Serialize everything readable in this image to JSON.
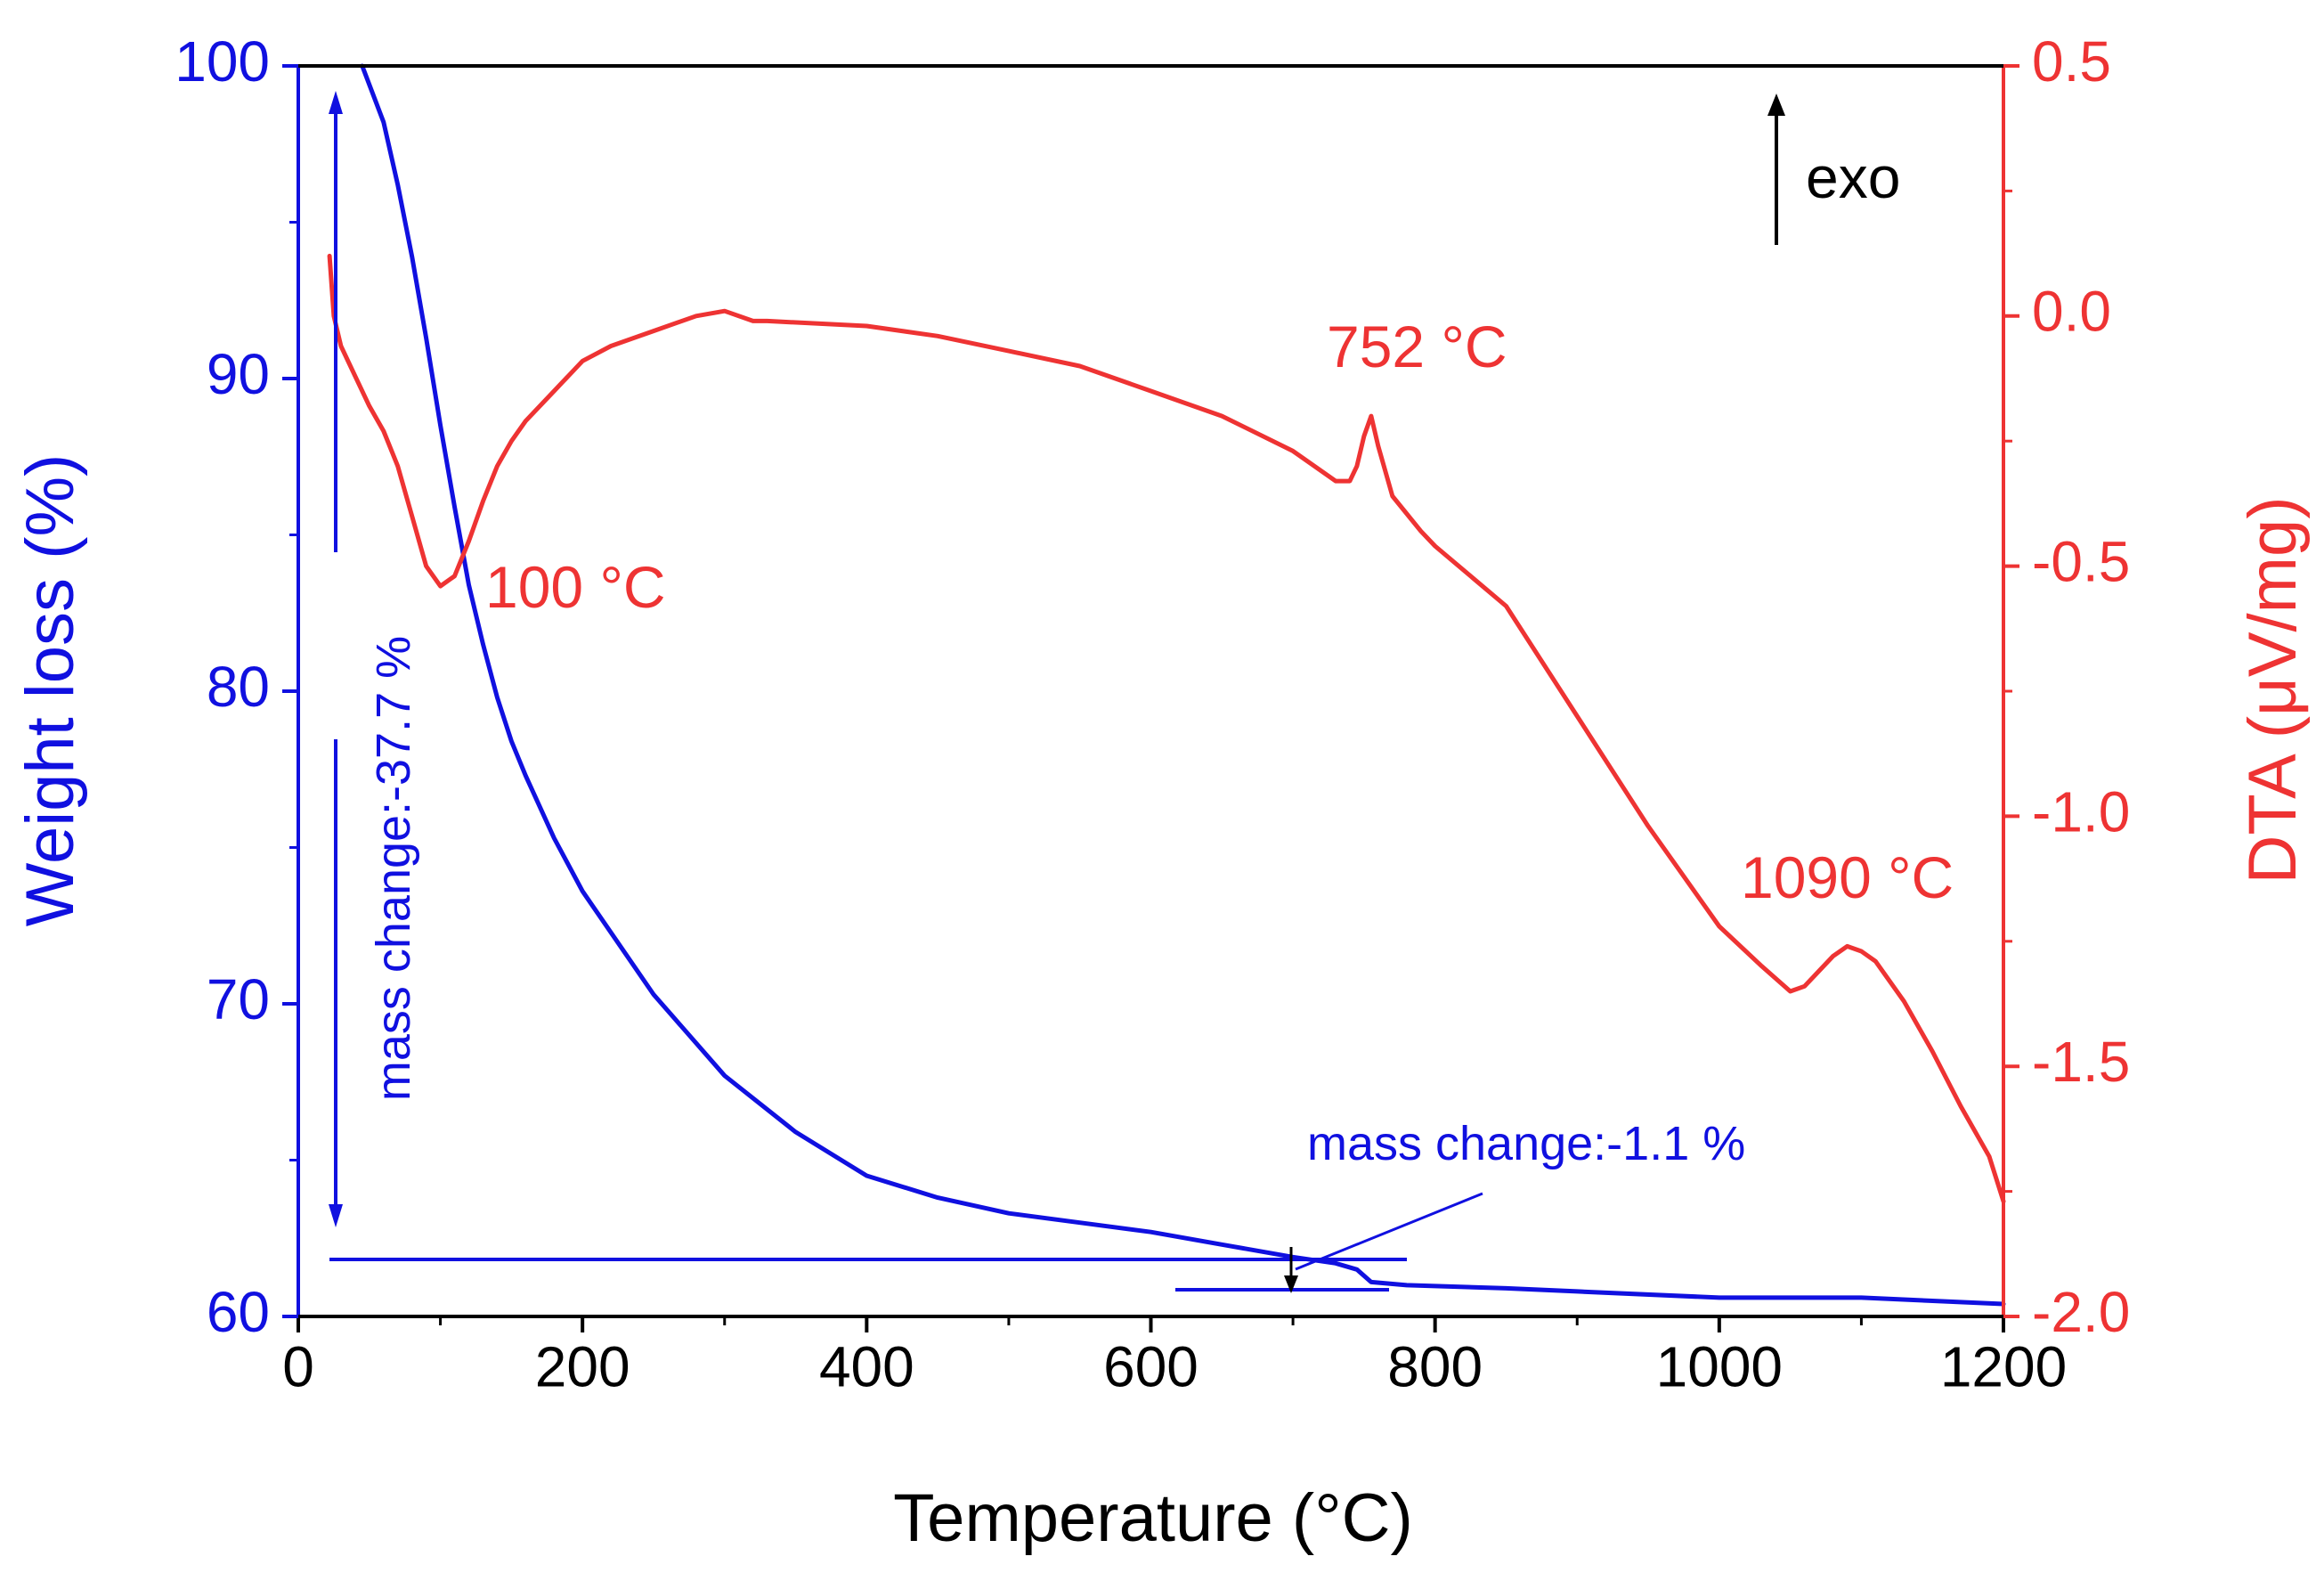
{
  "chart_data": {
    "type": "line",
    "x_axis": {
      "label": "Temperature (°C)",
      "range": [
        0,
        1200
      ],
      "ticks": [
        0,
        200,
        400,
        600,
        800,
        1000,
        1200
      ]
    },
    "y_axis_left": {
      "label": "Weight loss (%)",
      "range": [
        60,
        100
      ],
      "ticks": [
        60,
        70,
        80,
        90,
        100
      ],
      "color": "#1010e0"
    },
    "y_axis_right": {
      "label": "DTA (μV/mg)",
      "range": [
        -2.0,
        0.5
      ],
      "ticks": [
        "-2.0",
        "-1.5",
        "-1.0",
        "-0.5",
        "0.0",
        "0.5"
      ],
      "color": "#ee3333"
    },
    "series": [
      {
        "name": "Weight loss",
        "axis": "left",
        "color": "#1010e0",
        "x": [
          45,
          60,
          70,
          80,
          90,
          100,
          110,
          120,
          130,
          140,
          150,
          160,
          180,
          200,
          250,
          300,
          350,
          400,
          450,
          500,
          550,
          600,
          650,
          700,
          730,
          745,
          755,
          780,
          850,
          900,
          1000,
          1100,
          1200
        ],
        "y": [
          100,
          98.2,
          96.2,
          93.9,
          91.3,
          88.5,
          85.9,
          83.4,
          81.5,
          79.8,
          78.4,
          77.3,
          75.3,
          73.6,
          70.3,
          67.7,
          65.9,
          64.5,
          63.8,
          63.3,
          63.0,
          62.7,
          62.3,
          61.9,
          61.7,
          61.5,
          61.1,
          61.0,
          60.9,
          60.8,
          60.6,
          60.6,
          60.4
        ]
      },
      {
        "name": "DTA",
        "axis": "right",
        "color": "#ee3333",
        "x": [
          22,
          25,
          30,
          40,
          50,
          60,
          70,
          80,
          90,
          100,
          110,
          120,
          130,
          140,
          150,
          160,
          180,
          200,
          220,
          250,
          280,
          300,
          320,
          330,
          400,
          450,
          500,
          550,
          600,
          650,
          700,
          730,
          740,
          745,
          750,
          755,
          760,
          770,
          790,
          800,
          850,
          900,
          950,
          1000,
          1030,
          1050,
          1060,
          1070,
          1080,
          1090,
          1100,
          1110,
          1130,
          1150,
          1170,
          1190,
          1200
        ],
        "y": [
          0.12,
          0.0,
          -0.06,
          -0.12,
          -0.18,
          -0.23,
          -0.3,
          -0.4,
          -0.5,
          -0.54,
          -0.52,
          -0.45,
          -0.37,
          -0.3,
          -0.25,
          -0.21,
          -0.15,
          -0.09,
          -0.06,
          -0.03,
          0.0,
          0.01,
          -0.01,
          -0.01,
          -0.02,
          -0.04,
          -0.07,
          -0.1,
          -0.15,
          -0.2,
          -0.27,
          -0.33,
          -0.33,
          -0.3,
          -0.24,
          -0.2,
          -0.26,
          -0.36,
          -0.43,
          -0.46,
          -0.58,
          -0.8,
          -1.02,
          -1.22,
          -1.3,
          -1.35,
          -1.34,
          -1.31,
          -1.28,
          -1.26,
          -1.27,
          -1.29,
          -1.37,
          -1.47,
          -1.58,
          -1.68,
          -1.77
        ]
      }
    ],
    "annotations": {
      "exo": "exo",
      "peak_100": "100 °C",
      "peak_752": "752 °C",
      "peak_1090": "1090 °C",
      "mass_change_total": "mass change:-37.7 %",
      "mass_change_step": "mass change:-1.1 %"
    }
  }
}
